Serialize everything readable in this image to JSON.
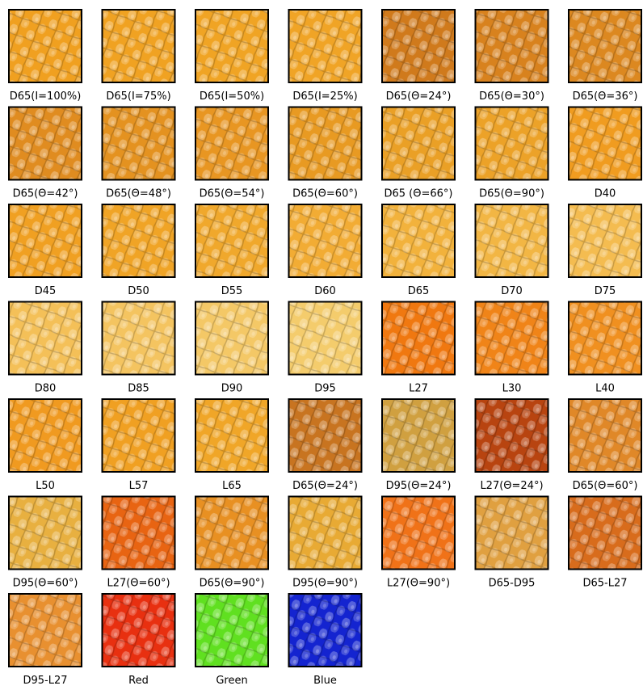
{
  "tiles": [
    {
      "label": "D65(I=100%)",
      "color": "#f0a020"
    },
    {
      "label": "D65(I=75%)",
      "color": "#f0a222"
    },
    {
      "label": "D65(I=50%)",
      "color": "#f0a424"
    },
    {
      "label": "D65(I=25%)",
      "color": "#f0a426"
    },
    {
      "label": "D65(Θ=24°)",
      "color": "#d07a1c"
    },
    {
      "label": "D65(Θ=30°)",
      "color": "#d8821e"
    },
    {
      "label": "D65(Θ=36°)",
      "color": "#dc8820"
    },
    {
      "label": "D65(Θ=42°)",
      "color": "#e08c20"
    },
    {
      "label": "D65(Θ=48°)",
      "color": "#e49220"
    },
    {
      "label": "D65(Θ=54°)",
      "color": "#e89622"
    },
    {
      "label": "D65(Θ=60°)",
      "color": "#e89a22"
    },
    {
      "label": "D65 (Θ=66°)",
      "color": "#eaa026"
    },
    {
      "label": "D65(Θ=90°)",
      "color": "#eca228"
    },
    {
      "label": "D40",
      "color": "#f09c20"
    },
    {
      "label": "D45",
      "color": "#f0a022"
    },
    {
      "label": "D50",
      "color": "#f0a426"
    },
    {
      "label": "D55",
      "color": "#f0a82c"
    },
    {
      "label": "D60",
      "color": "#f2ac34"
    },
    {
      "label": "D65",
      "color": "#f2b23c"
    },
    {
      "label": "D70",
      "color": "#f2b644"
    },
    {
      "label": "D75",
      "color": "#f4bc50"
    },
    {
      "label": "D80",
      "color": "#f4c058"
    },
    {
      "label": "D85",
      "color": "#f4c460"
    },
    {
      "label": "D90",
      "color": "#f4c866"
    },
    {
      "label": "D95",
      "color": "#f4cc6c"
    },
    {
      "label": "L27",
      "color": "#f07810"
    },
    {
      "label": "L30",
      "color": "#f08418"
    },
    {
      "label": "L40",
      "color": "#f09020"
    },
    {
      "label": "L50",
      "color": "#f09a20"
    },
    {
      "label": "L57",
      "color": "#f0a022"
    },
    {
      "label": "L65",
      "color": "#f0a628"
    },
    {
      "label": "D65(Θ=24°)",
      "color": "#c87420"
    },
    {
      "label": "D95(Θ=24°)",
      "color": "#d0a040"
    },
    {
      "label": "L27(Θ=24°)",
      "color": "#b84410"
    },
    {
      "label": "D65(Θ=60°)",
      "color": "#e08828"
    },
    {
      "label": "D95(Θ=60°)",
      "color": "#e8b040"
    },
    {
      "label": "L27(Θ=60°)",
      "color": "#e86412"
    },
    {
      "label": "D65(Θ=90°)",
      "color": "#e89022"
    },
    {
      "label": "D95(Θ=90°)",
      "color": "#e8aa34"
    },
    {
      "label": "L27(Θ=90°)",
      "color": "#f07218"
    },
    {
      "label": "D65-D95",
      "color": "#e0a040"
    },
    {
      "label": "D65-L27",
      "color": "#d86c1c"
    },
    {
      "label": "D95-L27",
      "color": "#e89030"
    },
    {
      "label": "Red",
      "color": "#e83010"
    },
    {
      "label": "Green",
      "color": "#60e020"
    },
    {
      "label": "Blue",
      "color": "#1424d0"
    }
  ]
}
